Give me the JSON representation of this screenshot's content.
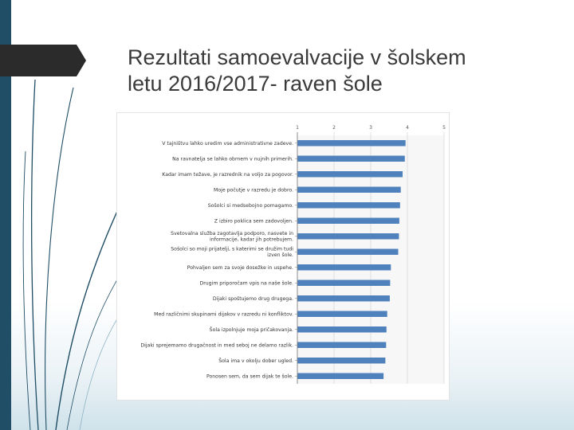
{
  "slide": {
    "title_line1": "Rezultati samoevalvacije v šolskem",
    "title_line2": "letu 2016/2017- raven šole"
  },
  "colors": {
    "sidebar": "#1f4e66",
    "tab": "#2b2b2b",
    "bar": "#4f81bd",
    "grid": "#d9d9d9"
  },
  "chart_data": {
    "type": "bar",
    "orientation": "horizontal",
    "xlim": [
      1,
      5
    ],
    "xticks": [
      1,
      2,
      3,
      4,
      5
    ],
    "grid": true,
    "categories": [
      [
        "V tajništvu lahko uredim vse administrativne zadeve."
      ],
      [
        "Na ravnatelja se lahko obrnem v nujnih primerih."
      ],
      [
        "Kadar imam težave, je razrednik na voljo za pogovor."
      ],
      [
        "Moje počutje v razredu je dobro."
      ],
      [
        "Sošolci si medsebojno pomagamo."
      ],
      [
        "Z izbiro poklica sem zadovoljen."
      ],
      [
        "Svetovalna služba zagotavlja podporo, nasvete in",
        "informacije, kadar jih potrebujem."
      ],
      [
        "Sošolci so moji prijatelji, s katerimi se družim tudi",
        "izven šole."
      ],
      [
        "Pohvaljen sem za svoje dosežke in uspehe."
      ],
      [
        "Drugim priporočam vpis na naše šole."
      ],
      [
        "Dijaki spoštujemo drug drugega."
      ],
      [
        "Med različnimi skupinami dijakov v razredu ni konfliktov."
      ],
      [
        "Šola izpolnjuje moja pričakovanja."
      ],
      [
        "Dijaki sprejemamo drugačnost in med seboj ne delamo razlik."
      ],
      [
        "Šola ima v okolju dober ugled."
      ],
      [
        "Ponosen sem, da sem dijak te šole."
      ]
    ],
    "values": [
      3.95,
      3.93,
      3.87,
      3.82,
      3.8,
      3.78,
      3.77,
      3.75,
      3.55,
      3.53,
      3.52,
      3.45,
      3.43,
      3.42,
      3.4,
      3.35
    ]
  }
}
